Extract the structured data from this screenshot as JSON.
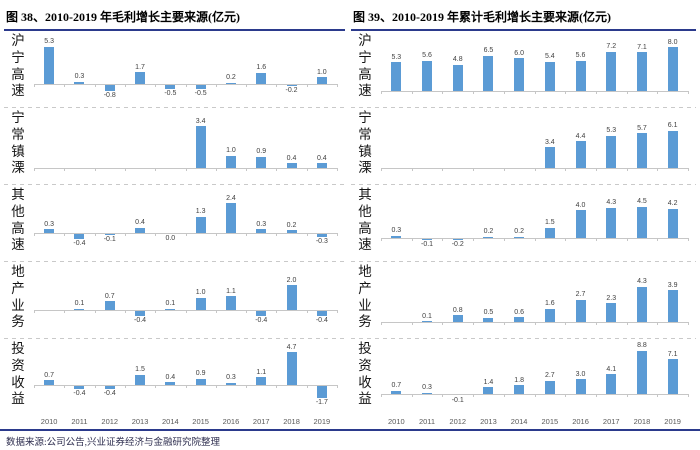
{
  "source_note": "数据来源:公司公告,兴业证券经济与金融研究院整理",
  "colors": {
    "bar": "#5B9BD5",
    "rule": "#2B3A8C",
    "axis": "#C6C6C6",
    "divider": "#C9C9C9",
    "value_label": "#404040",
    "year_label": "#595959"
  },
  "chart_data": [
    {
      "type": "bar",
      "title": "图 38、2010-2019 年毛利增长主要来源(亿元)",
      "xlabel": "",
      "ylabel": "",
      "grid": false,
      "legend": false,
      "value_labels": true,
      "categories": [
        "2010",
        "2011",
        "2012",
        "2013",
        "2014",
        "2015",
        "2016",
        "2017",
        "2018",
        "2019"
      ],
      "series": [
        {
          "name": "沪宁高速",
          "values": [
            5.3,
            0.3,
            -0.8,
            1.7,
            -0.5,
            -0.5,
            0.2,
            1.6,
            -0.2,
            1.0
          ],
          "ylim": [
            -1,
            6
          ]
        },
        {
          "name": "宁常镇溧",
          "values": [
            null,
            null,
            null,
            null,
            null,
            3.4,
            1.0,
            0.9,
            0.4,
            0.4
          ],
          "ylim": [
            0,
            4
          ]
        },
        {
          "name": "其他高速",
          "values": [
            0.3,
            -0.4,
            -0.1,
            0.4,
            0.0,
            1.3,
            2.4,
            0.3,
            0.2,
            -0.3
          ],
          "ylim": [
            -1,
            3
          ]
        },
        {
          "name": "地产业务",
          "values": [
            null,
            0.1,
            0.7,
            -0.4,
            0.1,
            1.0,
            1.1,
            -0.4,
            2.0,
            -0.4
          ],
          "ylim": [
            -1,
            3
          ]
        },
        {
          "name": "投资收益",
          "values": [
            0.7,
            -0.4,
            -0.4,
            1.5,
            0.4,
            0.9,
            0.3,
            1.1,
            4.7,
            -1.7
          ],
          "ylim": [
            -2,
            5
          ]
        }
      ]
    },
    {
      "type": "bar",
      "title": "图 39、2010-2019 年累计毛利增长主要来源(亿元)",
      "xlabel": "",
      "ylabel": "",
      "grid": false,
      "legend": false,
      "value_labels": true,
      "categories": [
        "2010",
        "2011",
        "2012",
        "2013",
        "2014",
        "2015",
        "2016",
        "2017",
        "2018",
        "2019"
      ],
      "series": [
        {
          "name": "沪宁高速",
          "values": [
            5.3,
            5.6,
            4.8,
            6.5,
            6.0,
            5.4,
            5.6,
            7.2,
            7.1,
            8.0
          ],
          "ylim": [
            0,
            9
          ]
        },
        {
          "name": "宁常镇溧",
          "values": [
            null,
            null,
            null,
            null,
            null,
            3.4,
            4.4,
            5.3,
            5.7,
            6.1
          ],
          "ylim": [
            0,
            8
          ]
        },
        {
          "name": "其他高速",
          "values": [
            0.3,
            -0.1,
            -0.2,
            0.2,
            0.2,
            1.5,
            4.0,
            4.3,
            4.5,
            4.2
          ],
          "ylim": [
            -1,
            6
          ]
        },
        {
          "name": "地产业务",
          "values": [
            null,
            0.1,
            0.8,
            0.5,
            0.6,
            1.6,
            2.7,
            2.3,
            4.3,
            3.9
          ],
          "ylim": [
            0,
            6
          ]
        },
        {
          "name": "投资收益",
          "values": [
            0.7,
            0.3,
            -0.1,
            1.4,
            1.8,
            2.7,
            3.0,
            4.1,
            8.8,
            7.1
          ],
          "ylim": [
            -1,
            9
          ]
        }
      ]
    }
  ]
}
